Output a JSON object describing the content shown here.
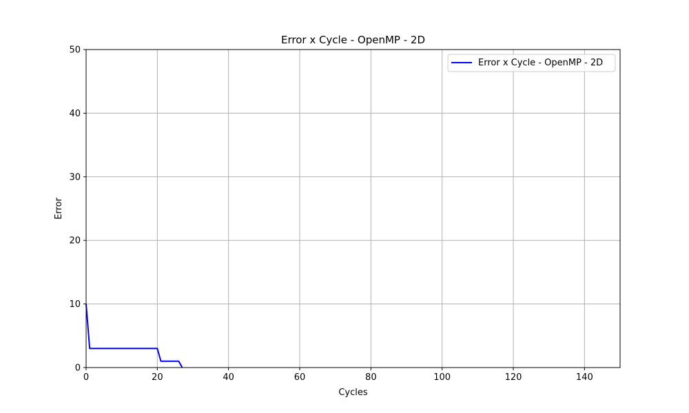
{
  "chart_data": {
    "type": "line",
    "title": "Error x Cycle - OpenMP - 2D",
    "xlabel": "Cycles",
    "ylabel": "Error",
    "xlim": [
      0,
      150
    ],
    "ylim": [
      0,
      50
    ],
    "xticks": [
      0,
      20,
      40,
      60,
      80,
      100,
      120,
      140
    ],
    "yticks": [
      0,
      10,
      20,
      30,
      40,
      50
    ],
    "grid": true,
    "legend_position": "top-right",
    "series": [
      {
        "name": "Error x Cycle - OpenMP - 2D",
        "color": "#0000ff",
        "x": [
          0,
          1,
          2,
          3,
          4,
          5,
          6,
          7,
          8,
          9,
          10,
          11,
          12,
          13,
          14,
          15,
          16,
          17,
          18,
          19,
          20,
          21,
          22,
          23,
          24,
          25,
          26,
          27
        ],
        "y": [
          10,
          3,
          3,
          3,
          3,
          3,
          3,
          3,
          3,
          3,
          3,
          3,
          3,
          3,
          3,
          3,
          3,
          3,
          3,
          3,
          3,
          1,
          1,
          1,
          1,
          1,
          1,
          0
        ]
      }
    ]
  }
}
